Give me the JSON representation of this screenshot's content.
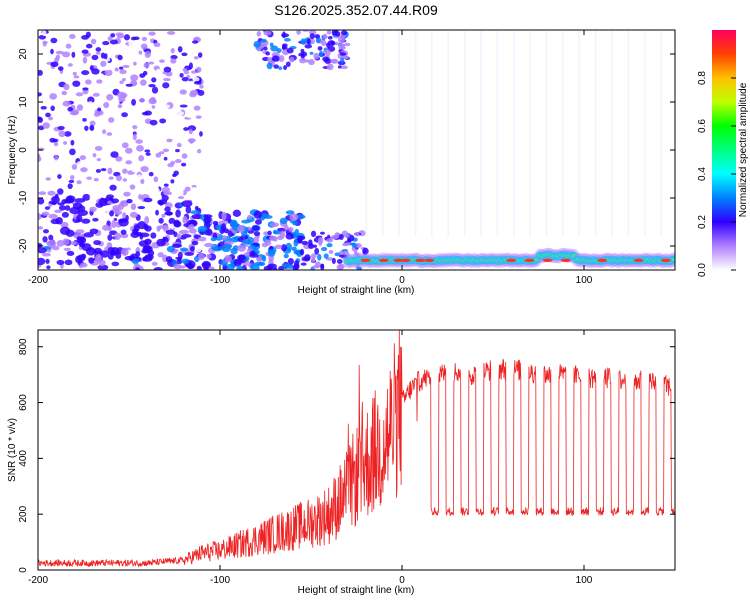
{
  "title": "S126.2025.352.07.44.R09",
  "chart_data": [
    {
      "type": "heatmap",
      "xlabel": "Height of straight line (km)",
      "ylabel": "Frequency (Hz)",
      "xlim": [
        -200,
        150
      ],
      "ylim": [
        -25,
        25
      ],
      "xticks": [
        -200,
        -100,
        0,
        100
      ],
      "yticks": [
        -20,
        -10,
        0,
        10,
        20
      ],
      "colorbar": {
        "label": "Normalized spectral amplitude",
        "range": [
          0,
          1
        ],
        "ticks": [
          0.0,
          0.2,
          0.4,
          0.6,
          0.8
        ],
        "colors": [
          "#ffffff",
          "#b080ff",
          "#3000ff",
          "#0080ff",
          "#00ffff",
          "#00ff80",
          "#00ff00",
          "#c0ff00",
          "#ffc000",
          "#ff4000",
          "#ff0040"
        ]
      },
      "features": [
        {
          "x_range": [
            -200,
            -110
          ],
          "f_range": [
            -25,
            25
          ],
          "amplitude": 0.15
        },
        {
          "x_range": [
            -110,
            -20
          ],
          "f_range": [
            -25,
            -15
          ],
          "amplitude": 0.3
        },
        {
          "x_range": [
            -80,
            -30
          ],
          "f_range": [
            18,
            25
          ],
          "amplitude": 0.25
        },
        {
          "x_range": [
            -30,
            150
          ],
          "f_center": -23,
          "amplitude": 0.85
        }
      ]
    },
    {
      "type": "line",
      "xlabel": "Height of straight line (km)",
      "ylabel": "SNR (10 * v/v)",
      "xlim": [
        -200,
        150
      ],
      "ylim": [
        0,
        860
      ],
      "xticks": [
        -200,
        -100,
        0,
        100
      ],
      "yticks": [
        0,
        200,
        400,
        600,
        800
      ],
      "series": [
        {
          "color": "#ee2222",
          "x": [
            -200,
            -180,
            -160,
            -140,
            -120,
            -110,
            -100,
            -90,
            -80,
            -70,
            -60,
            -50,
            -40,
            -35,
            -30,
            -25,
            -20,
            -15,
            -10,
            -5,
            0,
            5,
            10,
            15,
            20,
            30,
            40,
            50,
            60,
            70,
            80,
            90,
            100,
            110,
            120,
            130,
            140,
            150
          ],
          "values": [
            25,
            25,
            25,
            25,
            35,
            60,
            70,
            90,
            110,
            130,
            150,
            170,
            200,
            240,
            280,
            340,
            380,
            420,
            450,
            520,
            600,
            650,
            680,
            690,
            700,
            710,
            700,
            720,
            720,
            710,
            700,
            700,
            690,
            690,
            680,
            680,
            670,
            650
          ]
        }
      ],
      "dropouts": {
        "start": 18,
        "end": 150,
        "level": 210,
        "count": 17
      }
    }
  ]
}
